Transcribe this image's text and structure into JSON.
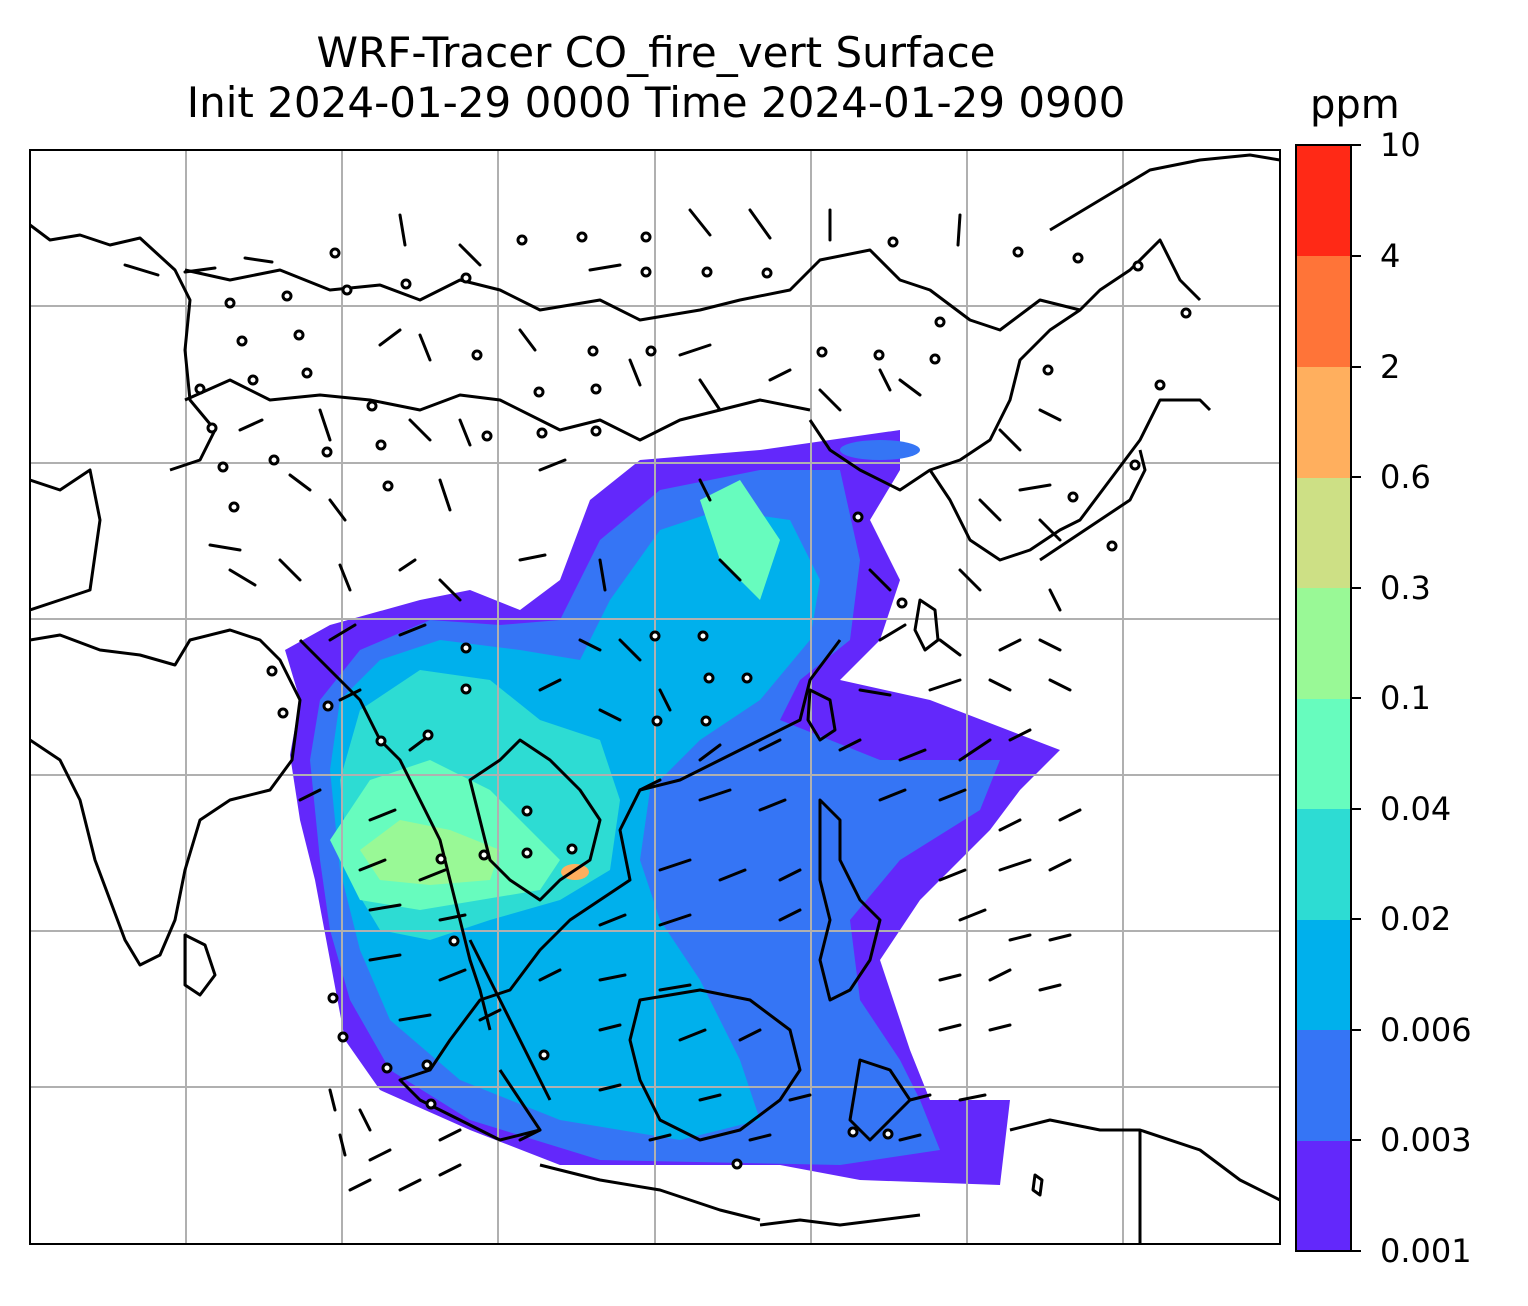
{
  "title": {
    "line1": "WRF-Tracer CO_fire_vert Surface",
    "line2": "Init 2024-01-29 0000 Time 2024-01-29 0900"
  },
  "colorbar": {
    "unit": "ppm",
    "levels": [
      "0.001",
      "0.003",
      "0.006",
      "0.02",
      "0.04",
      "0.1",
      "0.3",
      "0.6",
      "2",
      "4",
      "10"
    ],
    "colors": [
      "#6328fb",
      "#3575f5",
      "#00b0ec",
      "#2ddcd3",
      "#67fcbe",
      "#99f996",
      "#cde085",
      "#ffaf5e",
      "#ff7438",
      "#ff2916"
    ]
  },
  "map": {
    "gridlines": true,
    "features": [
      "coastlines",
      "country-borders",
      "wind-barbs",
      "calm-circles",
      "fire-co-field"
    ]
  }
}
